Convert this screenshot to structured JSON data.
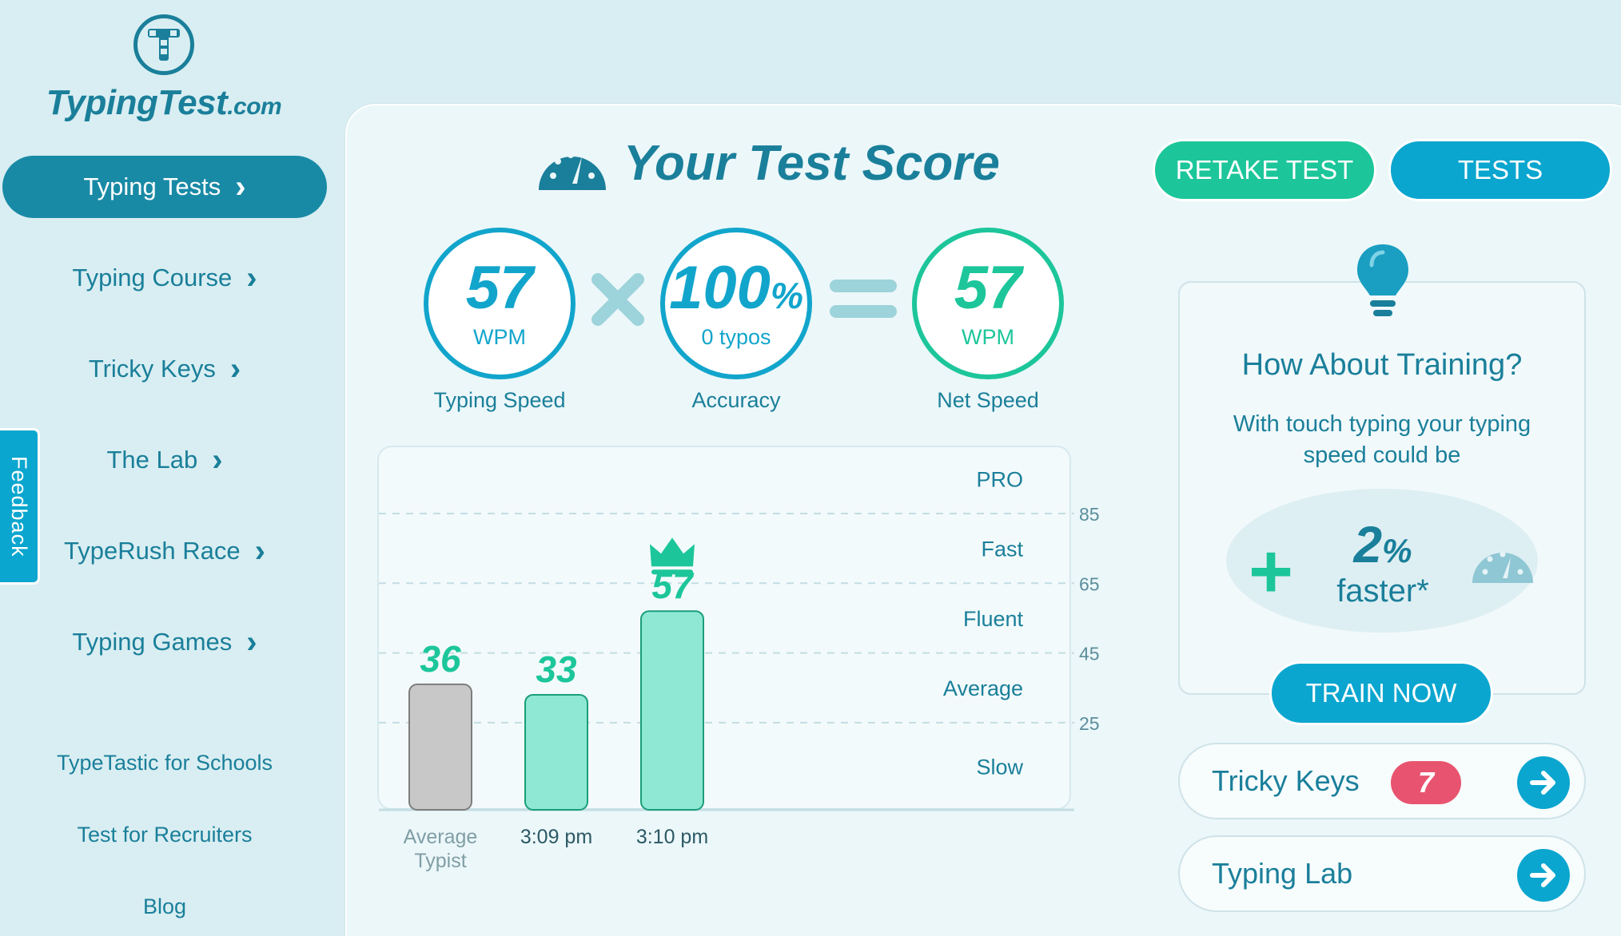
{
  "brand": {
    "name": "TypingTest",
    "tld": ".com"
  },
  "sidebar": {
    "items": [
      {
        "label": "Typing Tests",
        "active": true
      },
      {
        "label": "Typing Course"
      },
      {
        "label": "Tricky Keys"
      },
      {
        "label": "The Lab"
      },
      {
        "label": "TypeRush Race"
      },
      {
        "label": "Typing Games"
      }
    ],
    "secondary": [
      "TypeTastic for Schools",
      "Test for Recruiters",
      "Blog"
    ]
  },
  "feedback": {
    "label": "Feedback"
  },
  "score": {
    "title": "Your Test Score",
    "typing_speed": {
      "value": "57",
      "unit": "WPM",
      "label": "Typing Speed"
    },
    "accuracy": {
      "value": "100",
      "unit": "%",
      "sub": "0  typos",
      "label": "Accuracy"
    },
    "net_speed": {
      "value": "57",
      "unit": "WPM",
      "label": "Net Speed"
    }
  },
  "buttons": {
    "retake": "RETAKE TEST",
    "tests": "TESTS",
    "train": "TRAIN NOW"
  },
  "training": {
    "title": "How About Training?",
    "text": "With touch typing your typing speed could be",
    "percent": "2",
    "percent_unit": "%",
    "faster": "faster*"
  },
  "links": {
    "tricky_keys": {
      "label": "Tricky Keys",
      "badge": "7"
    },
    "typing_lab": {
      "label": "Typing Lab"
    }
  },
  "colors": {
    "accent": "#1a7f9a",
    "green": "#1cc69a",
    "blue": "#0aa6cf",
    "gray_bar": "#c8c8c8",
    "green_bar": "#8ee8d4",
    "badge": "#e8546f"
  },
  "chart_data": {
    "type": "bar",
    "categories": [
      "Average Typist",
      "3:09 pm",
      "3:10 pm"
    ],
    "values": [
      36,
      33,
      57
    ],
    "value_labels": [
      "36",
      "33",
      "57"
    ],
    "highlight": "3:10 pm",
    "ylim": [
      0,
      105
    ],
    "yticks": [
      25,
      45,
      65,
      85
    ],
    "bands": [
      "Slow",
      "Average",
      "Fluent",
      "Fast",
      "PRO"
    ],
    "grid": true
  }
}
